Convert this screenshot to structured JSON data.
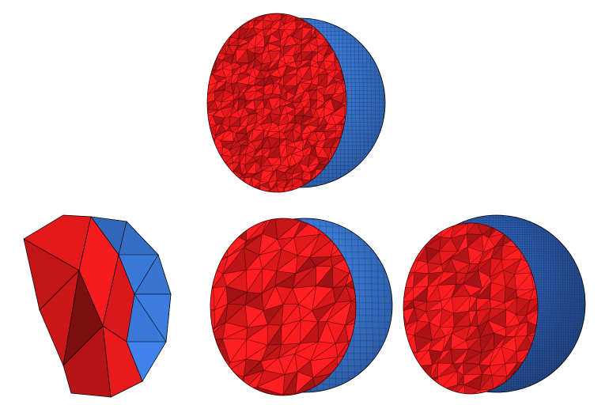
{
  "figure": {
    "panels": [
      {
        "id": "top",
        "name": "fine-mesh-sphere-cutaway",
        "cut_color": "#e3191c",
        "surface_color": "#3a78d8"
      },
      {
        "id": "coarse",
        "name": "coarse-mesh-polyhedron-cutaway",
        "cut_color": "#e3191c",
        "surface_color": "#3a78d8"
      },
      {
        "id": "medium",
        "name": "medium-mesh-sphere-cutaway",
        "cut_color": "#e3191c",
        "surface_color": "#3a78d8"
      },
      {
        "id": "fine",
        "name": "dense-mesh-sphere-cutaway",
        "cut_color": "#e3191c",
        "surface_color": "#2a5aa8"
      }
    ]
  }
}
